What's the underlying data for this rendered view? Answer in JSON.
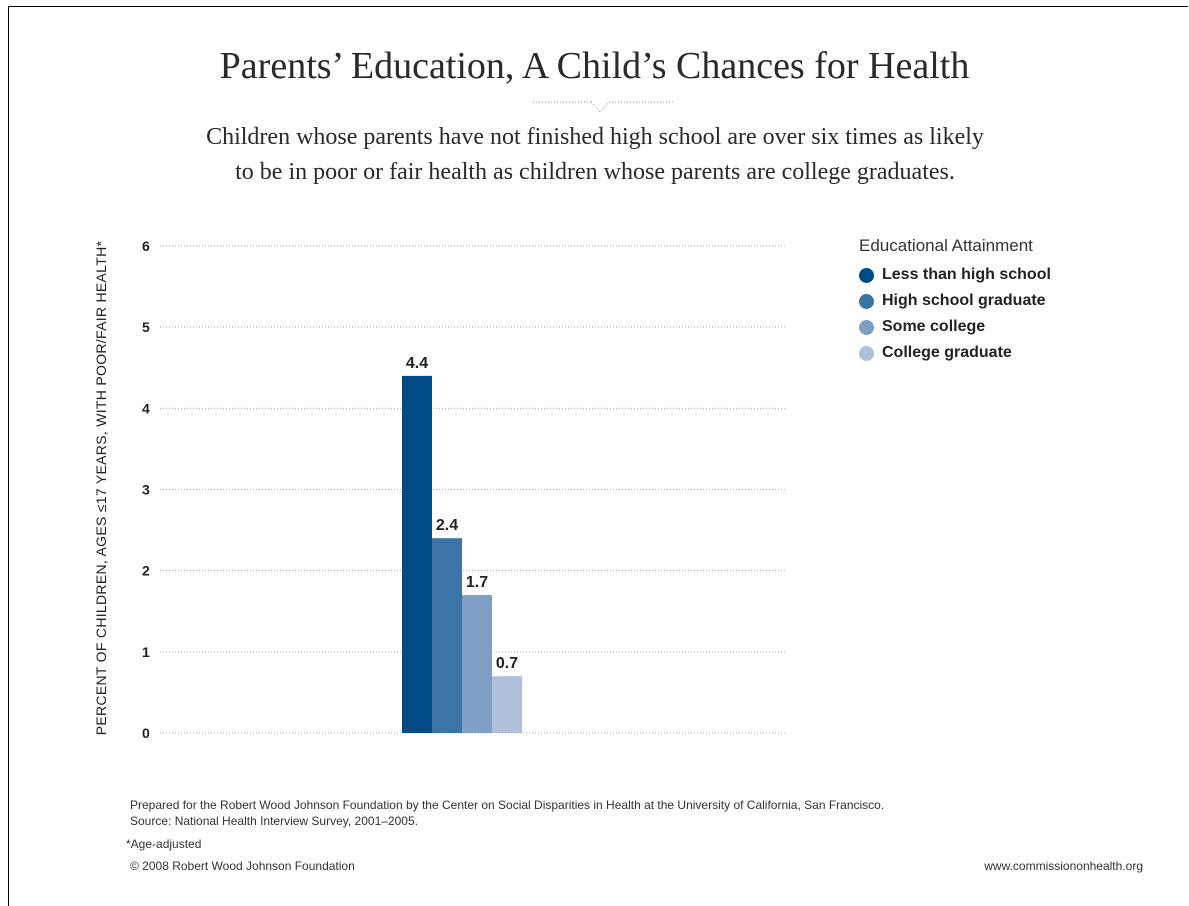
{
  "title": "Parents’ Education, A Child’s Chances for Health",
  "subtitle_line1": "Children whose parents have not finished high school are over six times as likely",
  "subtitle_line2": "to be in poor or fair health as children whose parents are college graduates.",
  "chart_data": {
    "type": "bar",
    "title": "Parents’ Education, A Child’s Chances for Health",
    "ylabel": "PERCENT OF CHILDREN, AGES ≤17 YEARS, WITH POOR/FAIR HEALTH*",
    "xlabel": "",
    "ylim": [
      0,
      6
    ],
    "yticks": [
      "0",
      "1",
      "2",
      "3",
      "4",
      "5",
      "6"
    ],
    "grid": true,
    "legend_placement": "top-right",
    "legend_title": "Educational Attainment",
    "series": [
      {
        "name": "Less than high school",
        "value": 4.4,
        "label": "4.4",
        "color": "#004b85"
      },
      {
        "name": "High school graduate",
        "value": 2.4,
        "label": "2.4",
        "color": "#3a75a6"
      },
      {
        "name": "Some college",
        "value": 1.7,
        "label": "1.7",
        "color": "#809fc4"
      },
      {
        "name": "College graduate",
        "value": 0.7,
        "label": "0.7",
        "color": "#aec0da"
      }
    ]
  },
  "footer": {
    "prepared": "Prepared for the Robert Wood Johnson Foundation by the Center on Social Disparities in Health at the University of California, San Francisco.",
    "source": "Source: National Health Interview Survey, 2001–2005.",
    "note": "*Age-adjusted",
    "copyright": "© 2008 Robert Wood Johnson Foundation",
    "website": "www.commissiononhealth.org"
  }
}
